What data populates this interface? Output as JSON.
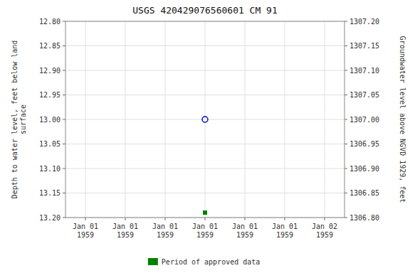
{
  "chart_data": {
    "type": "scatter",
    "title": "USGS 420429076560601 CM  91",
    "y_label": "Depth to water level, feet below land\nsurface",
    "y2_label": "Groundwater level above NGVD 1929, feet",
    "categories": [
      "Jan 01\n1959",
      "Jan 01\n1959",
      "Jan 01\n1959",
      "Jan 01\n1959",
      "Jan 01\n1959",
      "Jan 01\n1959",
      "Jan 02\n1959"
    ],
    "series": [
      {
        "color": "#0000cc",
        "marker": "circle",
        "values": [
          null,
          null,
          null,
          13.0,
          null,
          null,
          null
        ]
      },
      {
        "name": "Period of approved data",
        "color": "#008000",
        "marker": "square",
        "values": [
          null,
          null,
          null,
          13.19,
          null,
          null,
          null
        ]
      }
    ],
    "ylim": [
      13.2,
      12.8
    ],
    "yticks": [
      {
        "value": 12.8,
        "label": "12.80"
      },
      {
        "value": 12.85,
        "label": "12.85"
      },
      {
        "value": 12.9,
        "label": "12.90"
      },
      {
        "value": 12.95,
        "label": "12.95"
      },
      {
        "value": 13.0,
        "label": "13.00"
      },
      {
        "value": 13.05,
        "label": "13.05"
      },
      {
        "value": 13.1,
        "label": "13.10"
      },
      {
        "value": 13.15,
        "label": "13.15"
      },
      {
        "value": 13.2,
        "label": "13.20"
      }
    ],
    "y2lim": [
      1306.8,
      1307.2
    ],
    "y2ticks": [
      {
        "value": 1306.8,
        "label": "1306.80"
      },
      {
        "value": 1306.85,
        "label": "1306.85"
      },
      {
        "value": 1306.9,
        "label": "1306.90"
      },
      {
        "value": 1306.95,
        "label": "1306.95"
      },
      {
        "value": 1307.0,
        "label": "1307.00"
      },
      {
        "value": 1307.05,
        "label": "1307.05"
      },
      {
        "value": 1307.1,
        "label": "1307.10"
      },
      {
        "value": 1307.15,
        "label": "1307.15"
      },
      {
        "value": 1307.2,
        "label": "1307.20"
      }
    ],
    "grid": true,
    "legend": "bottom"
  }
}
